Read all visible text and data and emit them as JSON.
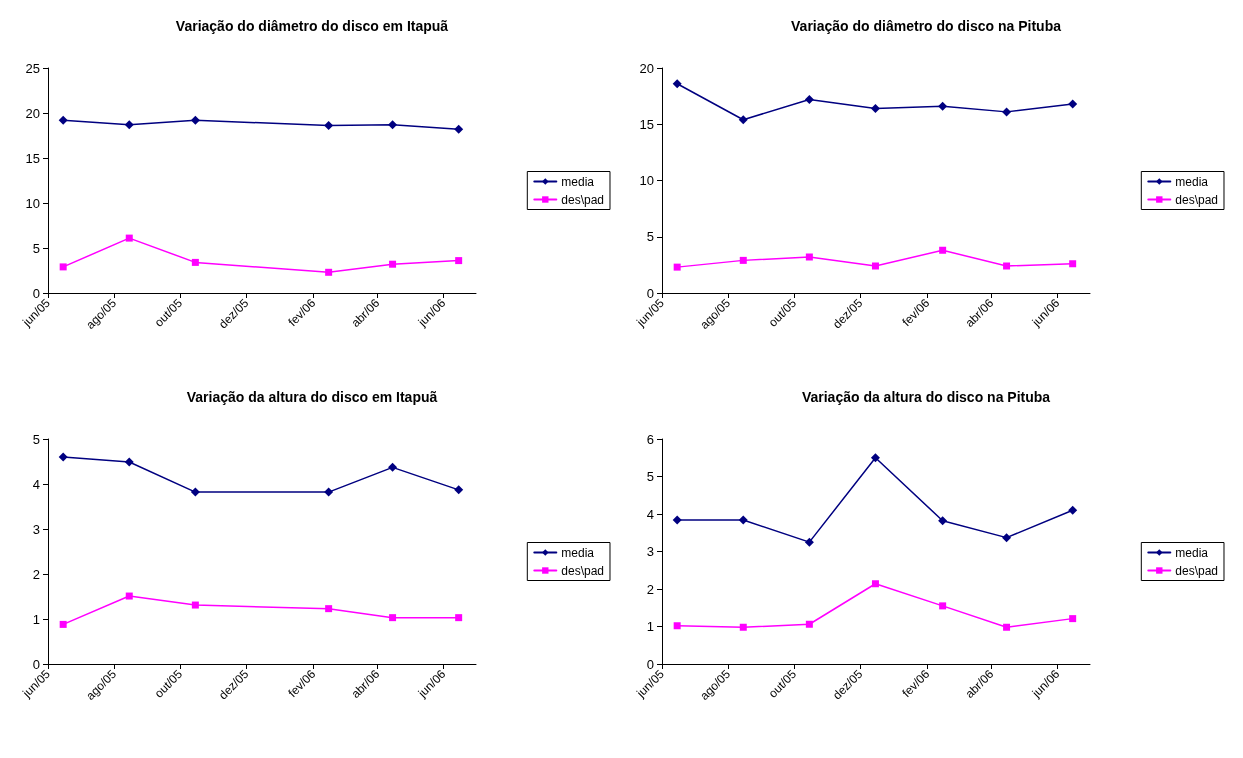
{
  "chart_data": [
    {
      "type": "line",
      "title": "Variação do diâmetro do disco em Itapuã",
      "x": [
        "2005-06-15",
        "2005-08-15",
        "2005-10-15",
        "2006-02-15",
        "2006-04-15",
        "2006-06-15"
      ],
      "series": [
        {
          "name": "media",
          "color": "#000080",
          "marker": "diamond",
          "values": [
            19.2,
            18.7,
            19.2,
            18.6,
            18.7,
            18.2
          ]
        },
        {
          "name": "des\\pad",
          "color": "#ff00ff",
          "marker": "square",
          "values": [
            2.9,
            6.1,
            3.4,
            2.3,
            3.2,
            3.6
          ]
        }
      ],
      "xlim": [
        "2005-06",
        "2006-07"
      ],
      "xticks": [
        {
          "value": "2005-06",
          "label": "jun/05"
        },
        {
          "value": "2005-08",
          "label": "ago/05"
        },
        {
          "value": "2005-10",
          "label": "out/05"
        },
        {
          "value": "2005-12",
          "label": "dez/05"
        },
        {
          "value": "2006-02",
          "label": "fev/06"
        },
        {
          "value": "2006-04",
          "label": "abr/06"
        },
        {
          "value": "2006-06",
          "label": "jun/06"
        }
      ],
      "ylim": [
        0,
        25
      ],
      "yticks": [
        0,
        5,
        10,
        15,
        20,
        25
      ],
      "grid": false,
      "legend": "right",
      "line_style": "solid"
    },
    {
      "type": "line",
      "title": "Variação do diâmetro do disco na Pituba",
      "x": [
        "2005-06-15",
        "2005-08-15",
        "2005-10-15",
        "2005-12-15",
        "2006-02-15",
        "2006-04-15",
        "2006-06-15"
      ],
      "series": [
        {
          "name": "media",
          "color": "#000080",
          "marker": "diamond",
          "values": [
            18.6,
            15.4,
            17.2,
            16.4,
            16.6,
            16.1,
            16.8
          ]
        },
        {
          "name": "des\\pad",
          "color": "#ff00ff",
          "marker": "square",
          "values": [
            2.3,
            2.9,
            3.2,
            2.4,
            3.8,
            2.4,
            2.6
          ]
        }
      ],
      "xlim": [
        "2005-06",
        "2006-07"
      ],
      "xticks": [
        {
          "value": "2005-06",
          "label": "jun/05"
        },
        {
          "value": "2005-08",
          "label": "ago/05"
        },
        {
          "value": "2005-10",
          "label": "out/05"
        },
        {
          "value": "2005-12",
          "label": "dez/05"
        },
        {
          "value": "2006-02",
          "label": "fev/06"
        },
        {
          "value": "2006-04",
          "label": "abr/06"
        },
        {
          "value": "2006-06",
          "label": "jun/06"
        }
      ],
      "ylim": [
        0,
        20
      ],
      "yticks": [
        0,
        5,
        10,
        15,
        20
      ],
      "grid": false,
      "legend": "right",
      "line_style": "solid"
    },
    {
      "type": "line",
      "title": "Variação da altura do disco em Itapuã",
      "x": [
        "2005-06-15",
        "2005-08-15",
        "2005-10-15",
        "2006-02-15",
        "2006-04-15",
        "2006-06-15"
      ],
      "series": [
        {
          "name": "media",
          "color": "#000080",
          "marker": "diamond",
          "values": [
            4.6,
            4.49,
            3.82,
            3.82,
            4.37,
            3.87
          ]
        },
        {
          "name": "des\\pad",
          "color": "#ff00ff",
          "marker": "square",
          "values": [
            0.88,
            1.51,
            1.31,
            1.23,
            1.03,
            1.03
          ]
        }
      ],
      "xlim": [
        "2005-06",
        "2006-07"
      ],
      "xticks": [
        {
          "value": "2005-06",
          "label": "jun/05"
        },
        {
          "value": "2005-08",
          "label": "ago/05"
        },
        {
          "value": "2005-10",
          "label": "out/05"
        },
        {
          "value": "2005-12",
          "label": "dez/05"
        },
        {
          "value": "2006-02",
          "label": "fev/06"
        },
        {
          "value": "2006-04",
          "label": "abr/06"
        },
        {
          "value": "2006-06",
          "label": "jun/06"
        }
      ],
      "ylim": [
        0,
        5
      ],
      "yticks": [
        0,
        1,
        2,
        3,
        4,
        5
      ],
      "grid": false,
      "legend": "right",
      "line_style": "solid"
    },
    {
      "type": "line",
      "title": "Variação da altura do disco na Pituba",
      "x": [
        "2005-06-15",
        "2005-08-15",
        "2005-10-15",
        "2005-12-15",
        "2006-02-15",
        "2006-04-15",
        "2006-06-15"
      ],
      "series": [
        {
          "name": "media",
          "color": "#000080",
          "marker": "diamond",
          "values": [
            3.84,
            3.84,
            3.25,
            5.5,
            3.82,
            3.37,
            4.1
          ]
        },
        {
          "name": "des\\pad",
          "color": "#ff00ff",
          "marker": "square",
          "values": [
            1.02,
            0.98,
            1.06,
            2.14,
            1.55,
            0.98,
            1.21
          ]
        }
      ],
      "xlim": [
        "2005-06",
        "2006-07"
      ],
      "xticks": [
        {
          "value": "2005-06",
          "label": "jun/05"
        },
        {
          "value": "2005-08",
          "label": "ago/05"
        },
        {
          "value": "2005-10",
          "label": "out/05"
        },
        {
          "value": "2005-12",
          "label": "dez/05"
        },
        {
          "value": "2006-02",
          "label": "fev/06"
        },
        {
          "value": "2006-04",
          "label": "abr/06"
        },
        {
          "value": "2006-06",
          "label": "jun/06"
        }
      ],
      "ylim": [
        0,
        6
      ],
      "yticks": [
        0,
        1,
        2,
        3,
        4,
        5,
        6
      ],
      "grid": false,
      "legend": "right",
      "line_style": "solid"
    }
  ]
}
